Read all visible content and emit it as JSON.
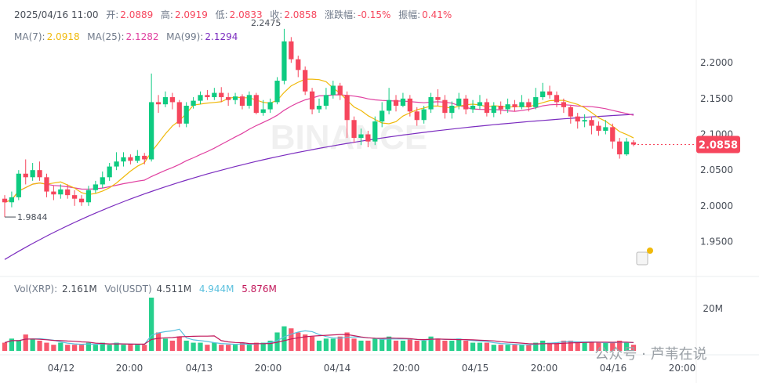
{
  "header": {
    "datetime": "2025/04/16 11:00",
    "open_label": "开:",
    "open": "2.0889",
    "high_label": "高:",
    "high": "2.0919",
    "low_label": "低:",
    "low": "2.0833",
    "close_label": "收:",
    "close": "2.0858",
    "change_label": "涨跌幅:",
    "change": "-0.15%",
    "amplitude_label": "振幅:",
    "amplitude": "0.41%"
  },
  "ma_legend": {
    "ma7_label": "MA(7):",
    "ma7": "2.0918",
    "ma25_label": "MA(25):",
    "ma25": "2.1282",
    "ma99_label": "MA(99):",
    "ma99": "2.1294"
  },
  "vol_legend": {
    "label1": "Vol(XRP):",
    "value1": "2.161M",
    "label2": "Vol(USDT)",
    "value2": "4.511M",
    "ma_a": "4.944M",
    "ma_b": "5.876M"
  },
  "watermark": "BINANCE",
  "footer_watermark": "公众号 · 芦苇在说",
  "colors": {
    "up": "#0ecb81",
    "down": "#f6465d",
    "ma7": "#f0b90b",
    "ma25": "#e040a0",
    "ma99": "#7b2cbf",
    "vol_ma_a": "#5bc0de",
    "vol_ma_b": "#c2185b"
  },
  "chart_data": {
    "type": "candlestick",
    "price_axis": {
      "ticks": [
        "2.2000",
        "2.1500",
        "2.1000",
        "2.0500",
        "2.0000",
        "1.9500"
      ],
      "min": 1.91,
      "max": 2.255
    },
    "volume_axis": {
      "ticks": [
        "20M"
      ],
      "max": 26
    },
    "x_ticks": [
      "04/12",
      "20:00",
      "04/13",
      "20:00",
      "04/14",
      "20:00",
      "04/15",
      "20:00",
      "04/16",
      "20:00"
    ],
    "last_price": "2.0858",
    "annotations": {
      "max": "2.2475",
      "min": "1.9844"
    },
    "candles": [
      [
        2.01,
        2.005,
        2.015,
        1.9844
      ],
      [
        2.005,
        2.012,
        2.02,
        1.998
      ],
      [
        2.012,
        2.045,
        2.05,
        2.008
      ],
      [
        2.045,
        2.04,
        2.065,
        2.03
      ],
      [
        2.04,
        2.05,
        2.06,
        2.035
      ],
      [
        2.05,
        2.04,
        2.062,
        2.035
      ],
      [
        2.04,
        2.02,
        2.045,
        2.012
      ],
      [
        2.02,
        2.016,
        2.028,
        2.008
      ],
      [
        2.016,
        2.023,
        2.03,
        2.01
      ],
      [
        2.023,
        2.015,
        2.03,
        2.01
      ],
      [
        2.015,
        2.01,
        2.022,
        2.0
      ],
      [
        2.01,
        2.005,
        2.015,
        2.0
      ],
      [
        2.005,
        2.022,
        2.028,
        2.0
      ],
      [
        2.022,
        2.03,
        2.035,
        2.018
      ],
      [
        2.03,
        2.04,
        2.048,
        2.025
      ],
      [
        2.04,
        2.055,
        2.06,
        2.035
      ],
      [
        2.055,
        2.062,
        2.075,
        2.05
      ],
      [
        2.062,
        2.068,
        2.075,
        2.055
      ],
      [
        2.068,
        2.063,
        2.072,
        2.058
      ],
      [
        2.063,
        2.07,
        2.078,
        2.06
      ],
      [
        2.07,
        2.065,
        2.074,
        2.058
      ],
      [
        2.065,
        2.145,
        2.185,
        2.062
      ],
      [
        2.145,
        2.142,
        2.155,
        2.13
      ],
      [
        2.142,
        2.152,
        2.16,
        2.138
      ],
      [
        2.152,
        2.145,
        2.158,
        2.135
      ],
      [
        2.145,
        2.115,
        2.148,
        2.11
      ],
      [
        2.115,
        2.14,
        2.145,
        2.11
      ],
      [
        2.14,
        2.147,
        2.152,
        2.136
      ],
      [
        2.147,
        2.155,
        2.16,
        2.142
      ],
      [
        2.155,
        2.152,
        2.162,
        2.148
      ],
      [
        2.152,
        2.158,
        2.165,
        2.148
      ],
      [
        2.158,
        2.152,
        2.166,
        2.145
      ],
      [
        2.152,
        2.148,
        2.158,
        2.14
      ],
      [
        2.148,
        2.153,
        2.158,
        2.142
      ],
      [
        2.153,
        2.14,
        2.156,
        2.135
      ],
      [
        2.14,
        2.155,
        2.16,
        2.136
      ],
      [
        2.155,
        2.13,
        2.158,
        2.128
      ],
      [
        2.13,
        2.135,
        2.148,
        2.126
      ],
      [
        2.135,
        2.145,
        2.15,
        2.13
      ],
      [
        2.145,
        2.175,
        2.18,
        2.142
      ],
      [
        2.175,
        2.23,
        2.2475,
        2.17
      ],
      [
        2.23,
        2.205,
        2.236,
        2.2
      ],
      [
        2.205,
        2.19,
        2.21,
        2.18
      ],
      [
        2.19,
        2.16,
        2.195,
        2.155
      ],
      [
        2.16,
        2.135,
        2.165,
        2.128
      ],
      [
        2.135,
        2.14,
        2.15,
        2.13
      ],
      [
        2.14,
        2.155,
        2.165,
        2.135
      ],
      [
        2.155,
        2.168,
        2.175,
        2.15
      ],
      [
        2.168,
        2.155,
        2.172,
        2.148
      ],
      [
        2.155,
        2.12,
        2.16,
        2.095
      ],
      [
        2.12,
        2.095,
        2.125,
        2.088
      ],
      [
        2.095,
        2.1,
        2.108,
        2.085
      ],
      [
        2.1,
        2.09,
        2.105,
        2.082
      ],
      [
        2.09,
        2.118,
        2.125,
        2.085
      ],
      [
        2.118,
        2.133,
        2.145,
        2.11
      ],
      [
        2.133,
        2.148,
        2.165,
        2.128
      ],
      [
        2.148,
        2.14,
        2.155,
        2.132
      ],
      [
        2.14,
        2.15,
        2.158,
        2.138
      ],
      [
        2.15,
        2.132,
        2.155,
        2.125
      ],
      [
        2.132,
        2.12,
        2.138,
        2.112
      ],
      [
        2.12,
        2.135,
        2.14,
        2.115
      ],
      [
        2.135,
        2.152,
        2.158,
        2.13
      ],
      [
        2.152,
        2.148,
        2.163,
        2.14
      ],
      [
        2.148,
        2.13,
        2.155,
        2.122
      ],
      [
        2.13,
        2.14,
        2.146,
        2.122
      ],
      [
        2.14,
        2.15,
        2.158,
        2.135
      ],
      [
        2.15,
        2.135,
        2.155,
        2.128
      ],
      [
        2.135,
        2.14,
        2.148,
        2.13
      ],
      [
        2.14,
        2.145,
        2.155,
        2.135
      ],
      [
        2.145,
        2.13,
        2.15,
        2.125
      ],
      [
        2.13,
        2.14,
        2.145,
        2.124
      ],
      [
        2.14,
        2.135,
        2.146,
        2.128
      ],
      [
        2.135,
        2.142,
        2.15,
        2.13
      ],
      [
        2.142,
        2.138,
        2.148,
        2.132
      ],
      [
        2.138,
        2.145,
        2.155,
        2.135
      ],
      [
        2.145,
        2.138,
        2.15,
        2.132
      ],
      [
        2.138,
        2.152,
        2.165,
        2.135
      ],
      [
        2.152,
        2.16,
        2.172,
        2.148
      ],
      [
        2.16,
        2.155,
        2.168,
        2.15
      ],
      [
        2.155,
        2.145,
        2.16,
        2.138
      ],
      [
        2.145,
        2.138,
        2.15,
        2.13
      ],
      [
        2.138,
        2.125,
        2.14,
        2.115
      ],
      [
        2.125,
        2.118,
        2.13,
        2.108
      ],
      [
        2.118,
        2.12,
        2.128,
        2.11
      ],
      [
        2.12,
        2.112,
        2.125,
        2.1
      ],
      [
        2.112,
        2.105,
        2.118,
        2.098
      ],
      [
        2.105,
        2.11,
        2.12,
        2.1
      ],
      [
        2.11,
        2.09,
        2.115,
        2.08
      ],
      [
        2.09,
        2.072,
        2.095,
        2.066
      ],
      [
        2.072,
        2.09,
        2.095,
        2.07
      ],
      [
        2.0889,
        2.0858,
        2.0919,
        2.0833
      ]
    ],
    "volumes": [
      4,
      6,
      5,
      8,
      6,
      5,
      4,
      3,
      4,
      3,
      3,
      3,
      4,
      3,
      4,
      3,
      4,
      3,
      3,
      3,
      3,
      26,
      9,
      6,
      5,
      7,
      5,
      4,
      4,
      3,
      4,
      3,
      3,
      3,
      4,
      3,
      4,
      4,
      5,
      9,
      12,
      11,
      9,
      8,
      7,
      5,
      6,
      6,
      7,
      9,
      6,
      5,
      5,
      6,
      6,
      7,
      5,
      5,
      6,
      5,
      5,
      7,
      6,
      5,
      5,
      6,
      5,
      4,
      4,
      4,
      3,
      3,
      3,
      3,
      3,
      3,
      4,
      5,
      4,
      4,
      5,
      5,
      4,
      4,
      4,
      4,
      4,
      4,
      5,
      4,
      3
    ],
    "vol_colors_up": null
  }
}
